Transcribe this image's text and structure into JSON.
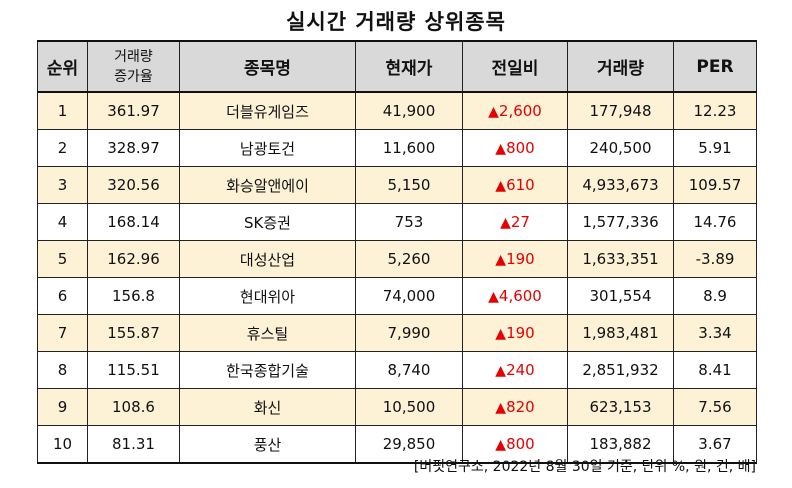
{
  "title": "실시간 거래량 상위종목",
  "headers": {
    "rank": "순위",
    "vol_increase_line1": "거래량",
    "vol_increase_line2": "증가율",
    "name": "종목명",
    "price": "현재가",
    "change": "전일비",
    "volume": "거래량",
    "per": "PER"
  },
  "change_symbol": "▲",
  "change_color": "#e60000",
  "shade_color": "#fdf1d6",
  "header_color": "#d9d9d9",
  "rows": [
    {
      "rank": "1",
      "vol_increase": "361.97",
      "name": "더블유게임즈",
      "price": "41,900",
      "change": "2,600",
      "volume": "177,948",
      "per": "12.23"
    },
    {
      "rank": "2",
      "vol_increase": "328.97",
      "name": "남광토건",
      "price": "11,600",
      "change": "800",
      "volume": "240,500",
      "per": "5.91"
    },
    {
      "rank": "3",
      "vol_increase": "320.56",
      "name": "화승알앤에이",
      "price": "5,150",
      "change": "610",
      "volume": "4,933,673",
      "per": "109.57"
    },
    {
      "rank": "4",
      "vol_increase": "168.14",
      "name": "SK증권",
      "price": "753",
      "change": "27",
      "volume": "1,577,336",
      "per": "14.76"
    },
    {
      "rank": "5",
      "vol_increase": "162.96",
      "name": "대성산업",
      "price": "5,260",
      "change": "190",
      "volume": "1,633,351",
      "per": "-3.89"
    },
    {
      "rank": "6",
      "vol_increase": "156.8",
      "name": "현대위아",
      "price": "74,000",
      "change": "4,600",
      "volume": "301,554",
      "per": "8.9"
    },
    {
      "rank": "7",
      "vol_increase": "155.87",
      "name": "휴스틸",
      "price": "7,990",
      "change": "190",
      "volume": "1,983,481",
      "per": "3.34"
    },
    {
      "rank": "8",
      "vol_increase": "115.51",
      "name": "한국종합기술",
      "price": "8,740",
      "change": "240",
      "volume": "2,851,932",
      "per": "8.41"
    },
    {
      "rank": "9",
      "vol_increase": "108.6",
      "name": "화신",
      "price": "10,500",
      "change": "820",
      "volume": "623,153",
      "per": "7.56"
    },
    {
      "rank": "10",
      "vol_increase": "81.31",
      "name": "풍산",
      "price": "29,850",
      "change": "800",
      "volume": "183,882",
      "per": "3.67"
    }
  ],
  "source_note": "[버핏연구소, 2022년 8월 30일 기준, 단위 %, 원, 건, 배]"
}
